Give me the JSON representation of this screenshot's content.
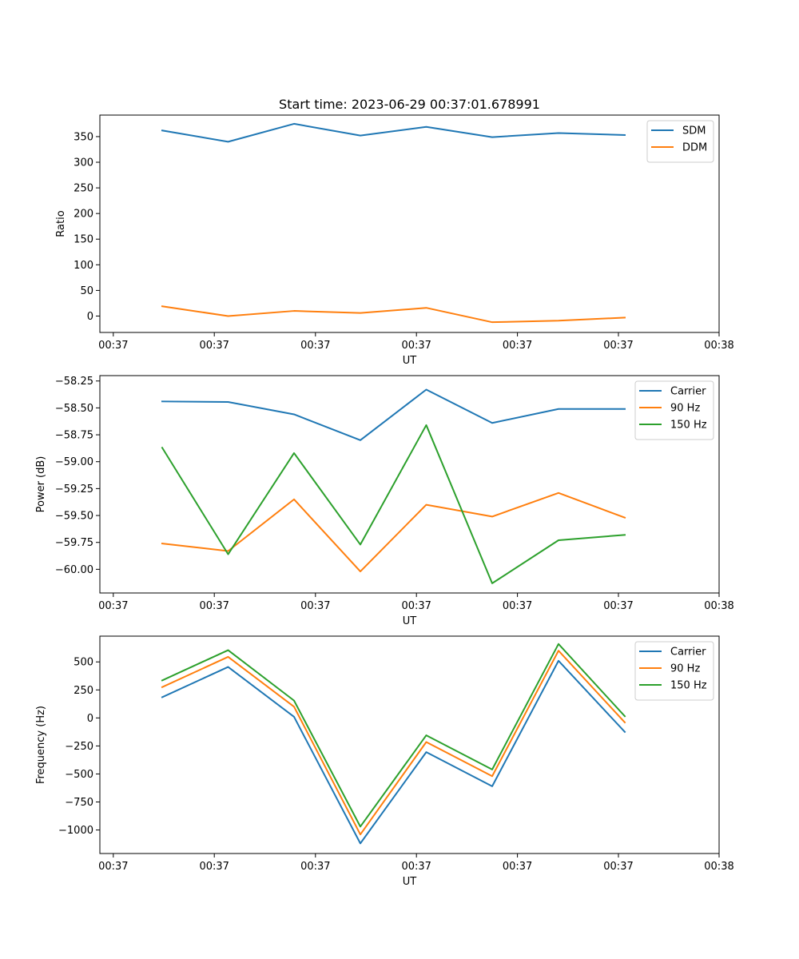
{
  "chart_data": [
    {
      "type": "line",
      "title": "Start time: 2023-06-29 00:37:01.678991",
      "xlabel": "UT",
      "ylabel": "Ratio",
      "x_tick_labels": [
        "00:37",
        "00:37",
        "00:37",
        "00:37",
        "00:37",
        "00:37",
        "00:38"
      ],
      "y_ticks": [
        0,
        50,
        100,
        150,
        200,
        250,
        300,
        350
      ],
      "y_tick_labels": [
        "0",
        "50",
        "100",
        "150",
        "200",
        "250",
        "300",
        "350"
      ],
      "ylim": [
        -32,
        392
      ],
      "legend_position": "top-right",
      "grid": false,
      "series": [
        {
          "name": "SDM",
          "color": "#1f77b4",
          "values": [
            362,
            340,
            375,
            352,
            369,
            349,
            357,
            353
          ]
        },
        {
          "name": "DDM",
          "color": "#ff7f0e",
          "values": [
            19,
            0,
            10,
            6,
            16,
            -12,
            -9,
            -3
          ]
        }
      ]
    },
    {
      "type": "line",
      "title": "",
      "xlabel": "UT",
      "ylabel": "Power (dB)",
      "x_tick_labels": [
        "00:37",
        "00:37",
        "00:37",
        "00:37",
        "00:37",
        "00:37",
        "00:38"
      ],
      "y_ticks": [
        -60.0,
        -59.75,
        -59.5,
        -59.25,
        -59.0,
        -58.75,
        -58.5,
        -58.25
      ],
      "y_tick_labels": [
        "−60.00",
        "−59.75",
        "−59.50",
        "−59.25",
        "−59.00",
        "−58.75",
        "−58.50",
        "−58.25"
      ],
      "ylim": [
        -60.22,
        -58.2
      ],
      "legend_position": "top-right",
      "grid": false,
      "series": [
        {
          "name": "Carrier",
          "color": "#1f77b4",
          "values": [
            -58.44,
            -58.445,
            -58.56,
            -58.8,
            -58.33,
            -58.64,
            -58.51,
            -58.51
          ]
        },
        {
          "name": "90 Hz",
          "color": "#ff7f0e",
          "values": [
            -59.76,
            -59.83,
            -59.35,
            -60.02,
            -59.4,
            -59.51,
            -59.29,
            -59.52
          ]
        },
        {
          "name": "150 Hz",
          "color": "#2ca02c",
          "values": [
            -58.87,
            -59.86,
            -58.92,
            -59.77,
            -58.66,
            -60.13,
            -59.73,
            -59.68
          ]
        }
      ]
    },
    {
      "type": "line",
      "title": "",
      "xlabel": "UT",
      "ylabel": "Frequency (Hz)",
      "x_tick_labels": [
        "00:37",
        "00:37",
        "00:37",
        "00:37",
        "00:37",
        "00:37",
        "00:38"
      ],
      "y_ticks": [
        -1000,
        -750,
        -500,
        -250,
        0,
        250,
        500
      ],
      "y_tick_labels": [
        "−1000",
        "−750",
        "−500",
        "−250",
        "0",
        "250",
        "500"
      ],
      "ylim": [
        -1210,
        730
      ],
      "legend_position": "top-right",
      "grid": false,
      "series": [
        {
          "name": "Carrier",
          "color": "#1f77b4",
          "values": [
            185,
            455,
            10,
            -1120,
            -305,
            -610,
            510,
            -125
          ]
        },
        {
          "name": "90 Hz",
          "color": "#ff7f0e",
          "values": [
            275,
            545,
            100,
            -1040,
            -215,
            -520,
            600,
            -40
          ]
        },
        {
          "name": "150 Hz",
          "color": "#2ca02c",
          "values": [
            335,
            605,
            155,
            -970,
            -155,
            -460,
            660,
            15
          ]
        }
      ]
    }
  ]
}
